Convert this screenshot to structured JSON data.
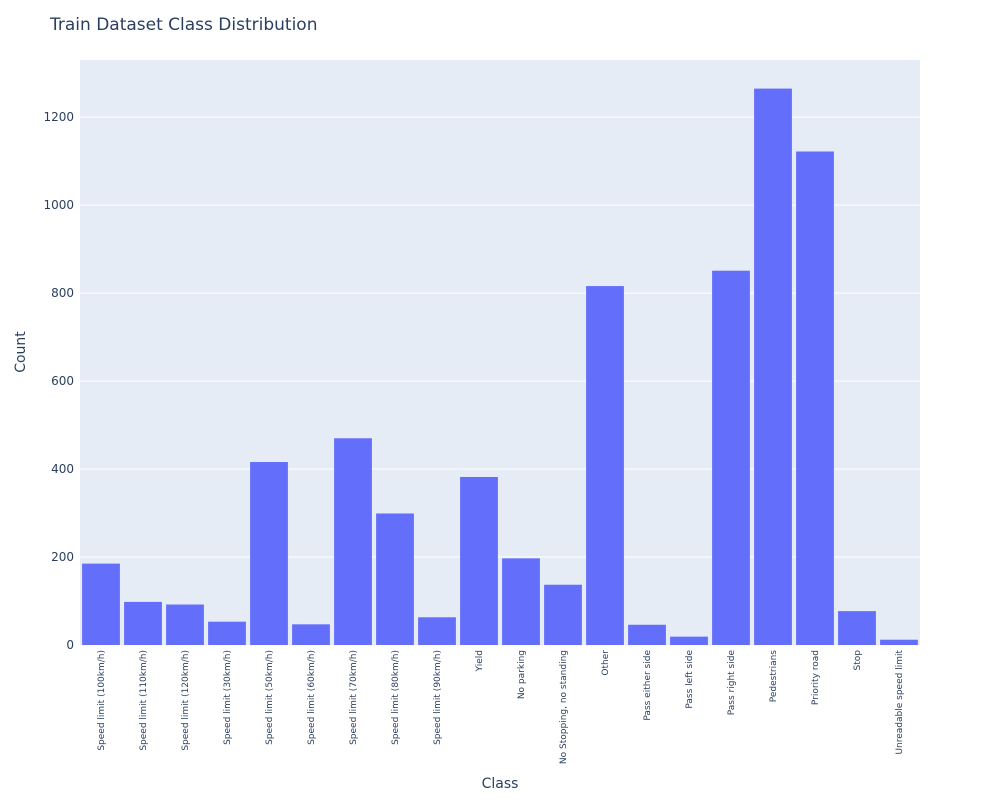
{
  "chart_data": {
    "type": "bar",
    "title": "Train Dataset Class Distribution",
    "xlabel": "Class",
    "ylabel": "Count",
    "ylim": [
      0,
      1330
    ],
    "yticks": [
      0,
      200,
      400,
      600,
      800,
      1000,
      1200
    ],
    "grid": true,
    "categories": [
      "Speed limit (100km/h)",
      "Speed limit (110km/h)",
      "Speed limit (120km/h)",
      "Speed limit (30km/h)",
      "Speed limit (50km/h)",
      "Speed limit (60km/h)",
      "Speed limit (70km/h)",
      "Speed limit (80km/h)",
      "Speed limit (90km/h)",
      "Yield",
      "No parking",
      "No Stopping, no standing",
      "Other",
      "Pass either side",
      "Pass left side",
      "Pass right side",
      "Pedestrians",
      "Priority road",
      "Stop",
      "Unreadable speed limit"
    ],
    "values": [
      185,
      98,
      92,
      53,
      416,
      47,
      470,
      299,
      63,
      382,
      197,
      137,
      816,
      46,
      19,
      851,
      1265,
      1122,
      77,
      12
    ],
    "colors": {
      "bar": "#636efa",
      "plot_bg": "#e5ecf6",
      "grid": "#ffffff",
      "text": "#2a3f5f"
    }
  }
}
